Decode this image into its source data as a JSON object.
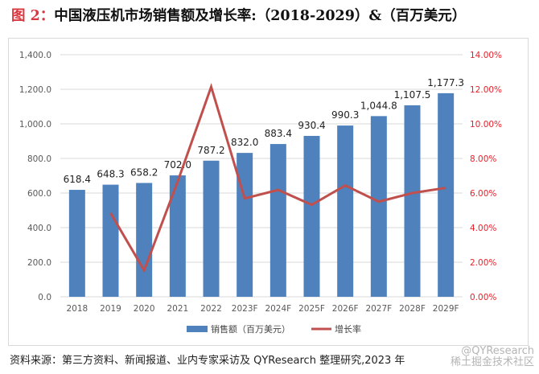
{
  "title": {
    "figure_label": "图 2：",
    "text": "中国液压机市场销售额及增长率:（2018-2029）&（百万美元）"
  },
  "chart_data": {
    "type": "bar+line",
    "categories": [
      "2018",
      "2019",
      "2020",
      "2021",
      "2022",
      "2023F",
      "2024F",
      "2025F",
      "2026F",
      "2027F",
      "2028F",
      "2029F"
    ],
    "series": [
      {
        "name": "销售额（百万美元）",
        "type": "bar",
        "axis": "left",
        "color": "#4f81bd",
        "values": [
          618.4,
          648.3,
          658.2,
          702.0,
          787.2,
          832.0,
          883.4,
          930.4,
          990.3,
          1044.8,
          1107.5,
          1177.3
        ],
        "labels": [
          "618.4",
          "648.3",
          "658.2",
          "702.0",
          "787.2",
          "832.0",
          "883.4",
          "930.4",
          "990.3",
          "1,044.8",
          "1,107.5",
          "1,177.3"
        ]
      },
      {
        "name": "增长率",
        "type": "line",
        "axis": "right",
        "color": "#c0504d",
        "values": [
          null,
          4.84,
          1.53,
          6.66,
          12.14,
          5.69,
          6.18,
          5.32,
          6.44,
          5.5,
          6.0,
          6.3
        ]
      }
    ],
    "left_axis": {
      "range": [
        0,
        1400
      ],
      "ticks": [
        "0.0",
        "200.0",
        "400.0",
        "600.0",
        "800.0",
        "1,000.0",
        "1,200.0",
        "1,400.0"
      ]
    },
    "right_axis": {
      "range": [
        0,
        14
      ],
      "color": "#e8202a",
      "ticks": [
        "0.00%",
        "2.00%",
        "4.00%",
        "6.00%",
        "8.00%",
        "10.00%",
        "12.00%",
        "14.00%"
      ]
    },
    "grid": true,
    "legend": "bottom"
  },
  "source": "资料来源：第三方资料、新闻报道、业内专家采访及 QYResearch 整理研究,2023 年",
  "watermark": "@QYResearch 稀土掘金技术社区"
}
